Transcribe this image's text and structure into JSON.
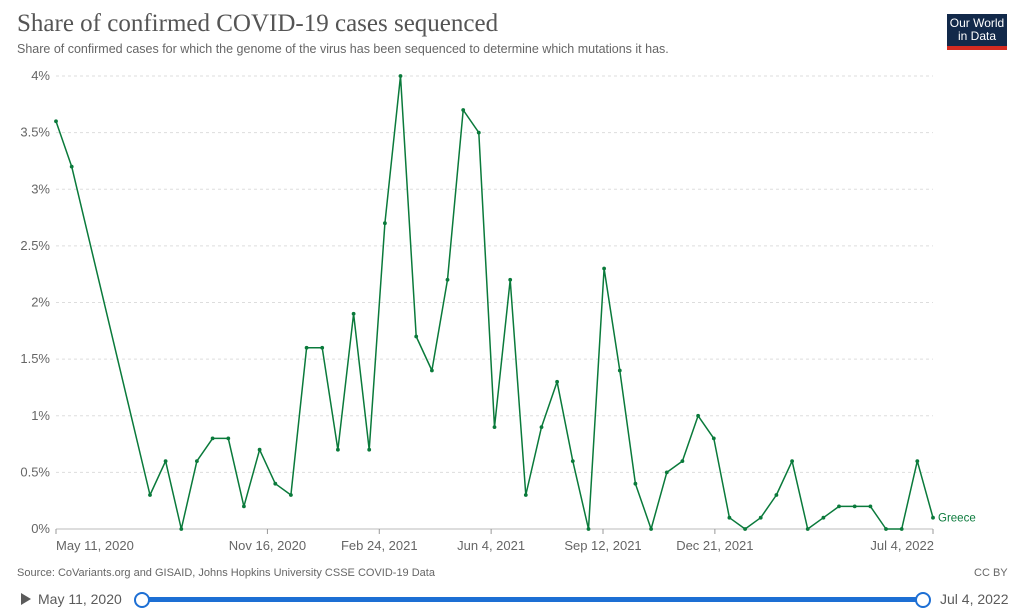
{
  "header": {
    "title": "Share of confirmed COVID-19 cases sequenced",
    "subtitle": "Share of confirmed cases for which the genome of the virus has been sequenced to determine which mutations it has.",
    "logo_line1": "Our World",
    "logo_line2": "in Data"
  },
  "footer": {
    "source": "Source: CoVariants.org and GISAID, Johns Hopkins University CSSE COVID-19 Data",
    "license": "CC BY"
  },
  "timeline": {
    "start_label": "May 11, 2020",
    "end_label": "Jul 4, 2022"
  },
  "colors": {
    "series": "#0a7a3b",
    "grid": "#dddddd",
    "slider": "#1d6fd4",
    "logo_bg": "#12294a",
    "logo_accent": "#d42b21"
  },
  "chart_data": {
    "type": "line",
    "title": "Share of confirmed COVID-19 cases sequenced",
    "xlabel": "",
    "ylabel": "",
    "ylim": [
      0,
      4
    ],
    "y_ticks": [
      {
        "value": 0,
        "label": "0%"
      },
      {
        "value": 0.5,
        "label": "0.5%"
      },
      {
        "value": 1,
        "label": "1%"
      },
      {
        "value": 1.5,
        "label": "1.5%"
      },
      {
        "value": 2,
        "label": "2%"
      },
      {
        "value": 2.5,
        "label": "2.5%"
      },
      {
        "value": 3,
        "label": "3%"
      },
      {
        "value": 3.5,
        "label": "3.5%"
      },
      {
        "value": 4,
        "label": "4%"
      }
    ],
    "x_ticks": [
      "May 11, 2020",
      "Nov 16, 2020",
      "Feb 24, 2021",
      "Jun 4, 2021",
      "Sep 12, 2021",
      "Dec 21, 2021",
      "Jul 4, 2022"
    ],
    "grid": true,
    "legend": "inline-end",
    "series": [
      {
        "name": "Greece",
        "x": [
          "2020-05-11",
          "2020-05-25",
          "2020-08-03",
          "2020-08-17",
          "2020-08-31",
          "2020-09-14",
          "2020-09-28",
          "2020-10-12",
          "2020-10-26",
          "2020-11-09",
          "2020-11-23",
          "2020-12-07",
          "2020-12-21",
          "2021-01-04",
          "2021-01-18",
          "2021-02-01",
          "2021-02-15",
          "2021-03-01",
          "2021-03-15",
          "2021-03-29",
          "2021-04-12",
          "2021-04-26",
          "2021-05-10",
          "2021-05-24",
          "2021-06-07",
          "2021-06-21",
          "2021-07-05",
          "2021-07-19",
          "2021-08-02",
          "2021-08-16",
          "2021-08-30",
          "2021-09-13",
          "2021-09-27",
          "2021-10-11",
          "2021-10-25",
          "2021-11-08",
          "2021-11-22",
          "2021-12-06",
          "2021-12-20",
          "2022-01-03",
          "2022-01-17",
          "2022-01-31",
          "2022-02-14",
          "2022-02-28",
          "2022-03-14",
          "2022-03-28",
          "2022-04-11",
          "2022-04-25",
          "2022-05-09",
          "2022-05-23",
          "2022-06-06",
          "2022-06-20",
          "2022-07-04"
        ],
        "values": [
          3.6,
          3.2,
          0.3,
          0.6,
          0.0,
          0.6,
          0.8,
          0.8,
          0.2,
          0.7,
          0.4,
          0.3,
          1.6,
          1.6,
          0.7,
          1.9,
          0.7,
          2.7,
          4.0,
          1.7,
          1.4,
          2.2,
          3.7,
          3.5,
          0.9,
          2.2,
          0.3,
          0.9,
          1.3,
          0.6,
          0.0,
          2.3,
          1.4,
          0.4,
          0.0,
          0.5,
          0.6,
          1.0,
          0.8,
          0.1,
          0.0,
          0.1,
          0.3,
          0.6,
          0.0,
          0.1,
          0.2,
          0.2,
          0.2,
          0.0,
          0.0,
          0.6,
          0.1
        ]
      }
    ]
  }
}
